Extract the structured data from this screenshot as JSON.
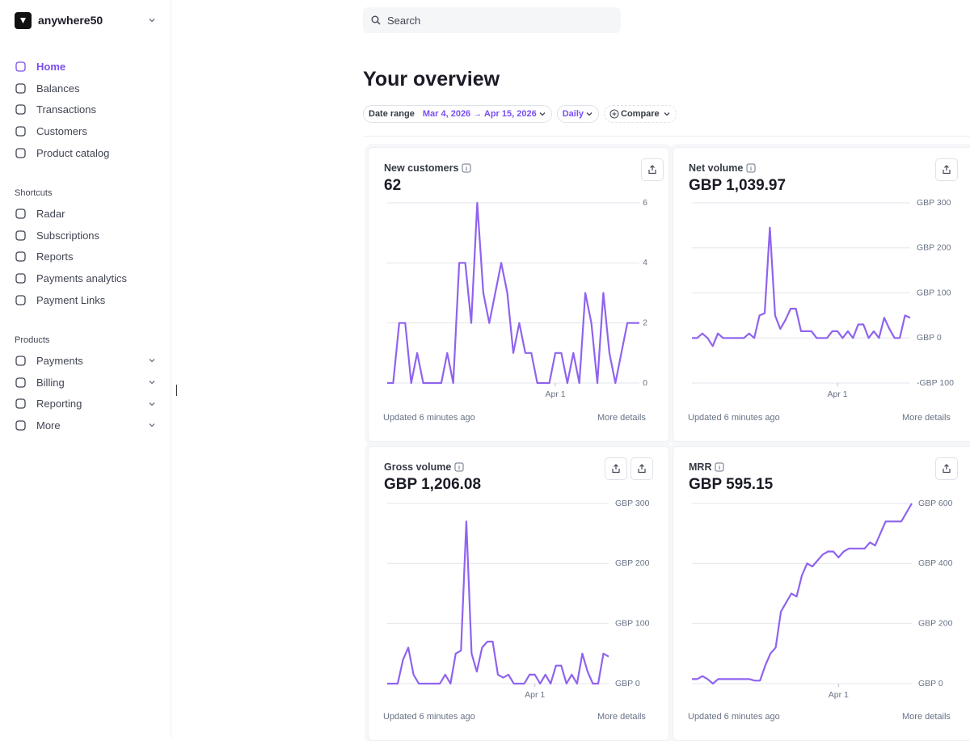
{
  "workspace": "anywhere50",
  "nav": [
    "Home",
    "Balances",
    "Transactions",
    "Customers",
    "Product catalog"
  ],
  "shortcuts": {
    "title": "Shortcuts",
    "items": [
      "Radar",
      "Subscriptions",
      "Reports",
      "Payments analytics",
      "Payment Links"
    ]
  },
  "products": {
    "title": "Products",
    "items": [
      "Payments",
      "Billing",
      "Reporting",
      "More"
    ]
  },
  "search": "Search",
  "title": "Your overview",
  "filters": {
    "date_range_label": "Date range",
    "date_range": "Mar 4, 2026 → Apr 15, 2026",
    "interval": "Daily",
    "compare": "Compare"
  },
  "chart_data": [
    {
      "type": "line",
      "title": "New customers",
      "value": "62",
      "color": "#8f63ef",
      "categories": [
        null,
        null,
        null,
        null,
        null,
        null,
        null,
        null,
        null,
        null,
        null,
        null,
        null,
        null,
        null,
        null,
        null,
        null,
        null,
        null,
        null,
        null,
        null,
        null,
        null,
        null,
        null,
        null,
        "Apr 1",
        null,
        null,
        null,
        null,
        null,
        null,
        null,
        null,
        null,
        null,
        null,
        null,
        null,
        null
      ],
      "values": [
        0,
        0,
        2,
        2,
        0,
        1,
        0,
        0,
        0,
        0,
        1,
        0,
        4,
        4,
        2,
        6,
        3,
        2,
        3,
        4,
        3,
        1,
        2,
        1,
        1,
        0,
        0,
        0,
        1,
        1,
        0,
        1,
        0,
        3,
        2,
        0,
        3,
        1,
        0,
        1,
        2,
        2,
        2
      ],
      "ylim": [
        0,
        6
      ],
      "yticks": [
        0,
        2,
        4,
        6
      ],
      "updated": "Updated 6 minutes ago",
      "details": "More details"
    },
    {
      "type": "line",
      "title": "Net volume",
      "value": "GBP 1,039.97",
      "color": "#8f63ef",
      "categories": [
        null,
        null,
        null,
        null,
        null,
        null,
        null,
        null,
        null,
        null,
        null,
        null,
        null,
        null,
        null,
        null,
        null,
        null,
        null,
        null,
        null,
        null,
        null,
        null,
        null,
        null,
        null,
        null,
        "Apr 1",
        null,
        null,
        null,
        null,
        null,
        null,
        null,
        null,
        null,
        null,
        null,
        null,
        null,
        null
      ],
      "values": [
        0,
        0,
        10,
        0,
        -18,
        10,
        0,
        0,
        0,
        0,
        0,
        10,
        0,
        50,
        55,
        245,
        50,
        20,
        40,
        65,
        65,
        15,
        15,
        15,
        0,
        0,
        0,
        15,
        15,
        0,
        15,
        0,
        30,
        30,
        0,
        15,
        0,
        45,
        20,
        0,
        0,
        50,
        45
      ],
      "ylim": [
        -100,
        300
      ],
      "yticks": [
        {
          "value": -100,
          "label": "-GBP 100"
        },
        {
          "value": 0,
          "label": "GBP 0"
        },
        {
          "value": 100,
          "label": "GBP 100"
        },
        {
          "value": 200,
          "label": "GBP 200"
        },
        {
          "value": 300,
          "label": "GBP 300"
        }
      ],
      "updated": "Updated 6 minutes ago",
      "details": "More details"
    },
    {
      "type": "line",
      "title": "Gross volume",
      "value": "GBP 1,206.08",
      "color": "#8f63ef",
      "categories": [
        null,
        null,
        null,
        null,
        null,
        null,
        null,
        null,
        null,
        null,
        null,
        null,
        null,
        null,
        null,
        null,
        null,
        null,
        null,
        null,
        null,
        null,
        null,
        null,
        null,
        null,
        null,
        null,
        "Apr 1",
        null,
        null,
        null,
        null,
        null,
        null,
        null,
        null,
        null,
        null,
        null,
        null,
        null,
        null
      ],
      "values": [
        0,
        0,
        0,
        40,
        60,
        15,
        0,
        0,
        0,
        0,
        0,
        15,
        0,
        50,
        55,
        270,
        50,
        20,
        60,
        70,
        70,
        15,
        10,
        15,
        0,
        0,
        0,
        15,
        15,
        0,
        15,
        0,
        30,
        30,
        0,
        15,
        0,
        50,
        20,
        0,
        0,
        50,
        45
      ],
      "ylim": [
        0,
        300
      ],
      "yticks": [
        {
          "value": 0,
          "label": "GBP 0"
        },
        {
          "value": 100,
          "label": "GBP 100"
        },
        {
          "value": 200,
          "label": "GBP 200"
        },
        {
          "value": 300,
          "label": "GBP 300"
        }
      ],
      "updated": "Updated 6 minutes ago",
      "details": "More details"
    },
    {
      "type": "line",
      "title": "MRR",
      "value": "GBP 595.15",
      "color": "#8f63ef",
      "categories": [
        null,
        null,
        null,
        null,
        null,
        null,
        null,
        null,
        null,
        null,
        null,
        null,
        null,
        null,
        null,
        null,
        null,
        null,
        null,
        null,
        null,
        null,
        null,
        null,
        null,
        null,
        null,
        null,
        "Apr 1",
        null,
        null,
        null,
        null,
        null,
        null,
        null,
        null,
        null,
        null,
        null,
        null,
        null,
        null
      ],
      "values": [
        15,
        15,
        25,
        15,
        0,
        15,
        15,
        15,
        15,
        15,
        15,
        15,
        10,
        10,
        60,
        100,
        120,
        240,
        270,
        300,
        290,
        360,
        400,
        390,
        410,
        430,
        440,
        440,
        420,
        440,
        450,
        450,
        450,
        450,
        470,
        460,
        500,
        540,
        540,
        540,
        540,
        570,
        600
      ],
      "ylim": [
        0,
        600
      ],
      "yticks": [
        {
          "value": 0,
          "label": "GBP 0"
        },
        {
          "value": 200,
          "label": "GBP 200"
        },
        {
          "value": 400,
          "label": "GBP 400"
        },
        {
          "value": 600,
          "label": "GBP 600"
        }
      ],
      "updated": "Updated 6 minutes ago",
      "details": "More details"
    }
  ]
}
